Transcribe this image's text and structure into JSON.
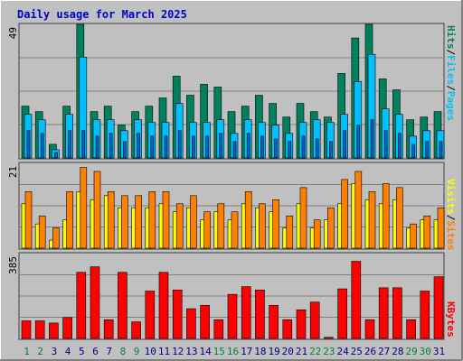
{
  "title": "Daily usage for March 2025",
  "colors": {
    "background": "#c0c0c0",
    "plot_bg": "#c0c0c0",
    "title": "#0000cc",
    "grid": "#808080",
    "hits": "#00805c",
    "files": "#00c0ff",
    "pages": "#00c0ff",
    "pages_dark": "#0066cc",
    "sites": "#ff8000",
    "visits": "#ffff00",
    "kbytes": "#ff0000",
    "weekday_label": "#000080",
    "weekend_label": "#008040"
  },
  "labels": {
    "hits": "Hits",
    "files": "Files",
    "pages": "Pages",
    "sites": "Sites",
    "visits": "Visits",
    "kbytes": "KBytes",
    "sep": "/"
  },
  "chart_data": {
    "type": "bar",
    "categories": [
      "1",
      "2",
      "3",
      "4",
      "5",
      "6",
      "7",
      "8",
      "9",
      "10",
      "11",
      "12",
      "13",
      "14",
      "15",
      "16",
      "17",
      "18",
      "19",
      "20",
      "21",
      "22",
      "23",
      "24",
      "25",
      "26",
      "27",
      "28",
      "29",
      "30",
      "31"
    ],
    "weekend_days": [
      "1",
      "2",
      "8",
      "9",
      "15",
      "16",
      "22",
      "23",
      "29",
      "30"
    ],
    "panels": [
      {
        "id": "hits_files_pages",
        "ymax_label": "49",
        "ymax": 49,
        "series": [
          {
            "name": "Hits",
            "values": [
              19,
              17,
              5,
              19,
              49,
              17,
              19,
              12,
              17,
              19,
              22,
              30,
              23,
              27,
              26,
              17,
              19,
              23,
              20,
              15,
              20,
              17,
              15,
              31,
              44,
              49,
              29,
              25,
              14,
              15,
              17
            ]
          },
          {
            "name": "Files",
            "values": [
              16,
              14,
              3,
              16,
              37,
              14,
              14,
              10,
              14,
              13,
              13,
              20,
              13,
              13,
              14,
              9,
              14,
              13,
              12,
              9,
              13,
              14,
              13,
              16,
              28,
              38,
              18,
              16,
              8,
              10,
              10
            ]
          },
          {
            "name": "Pages",
            "values": [
              10,
              9,
              2,
              10,
              10,
              8,
              9,
              6,
              9,
              8,
              8,
              10,
              8,
              8,
              9,
              6,
              9,
              8,
              7,
              6,
              8,
              7,
              6,
              10,
              12,
              14,
              10,
              9,
              5,
              6,
              6
            ]
          }
        ]
      },
      {
        "id": "sites_visits",
        "ymax_label": "21",
        "ymax": 21,
        "series": [
          {
            "name": "Sites",
            "values": [
              14,
              8,
              5,
              14,
              20,
              19,
              14,
              13,
              13,
              14,
              14,
              11,
              13,
              9,
              11,
              9,
              14,
              11,
              12,
              8,
              15,
              7,
              10,
              17,
              19,
              14,
              16,
              15,
              6,
              8,
              10
            ]
          },
          {
            "name": "Visits",
            "values": [
              11,
              6,
              2,
              7,
              14,
              12,
              13,
              10,
              10,
              10,
              11,
              9,
              10,
              7,
              9,
              7,
              11,
              10,
              9,
              5,
              11,
              5,
              7,
              11,
              16,
              12,
              11,
              12,
              5,
              7,
              7
            ]
          }
        ]
      },
      {
        "id": "kbytes",
        "ymax_label": "385",
        "ymax": 385,
        "series": [
          {
            "name": "KBytes",
            "values": [
              80,
              80,
              70,
              95,
              300,
              325,
              85,
              300,
              75,
              215,
              300,
              220,
              135,
              150,
              85,
              200,
              235,
              220,
              150,
              85,
              130,
              165,
              5,
              225,
              350,
              85,
              230,
              230,
              85,
              215,
              280
            ]
          }
        ]
      }
    ]
  }
}
